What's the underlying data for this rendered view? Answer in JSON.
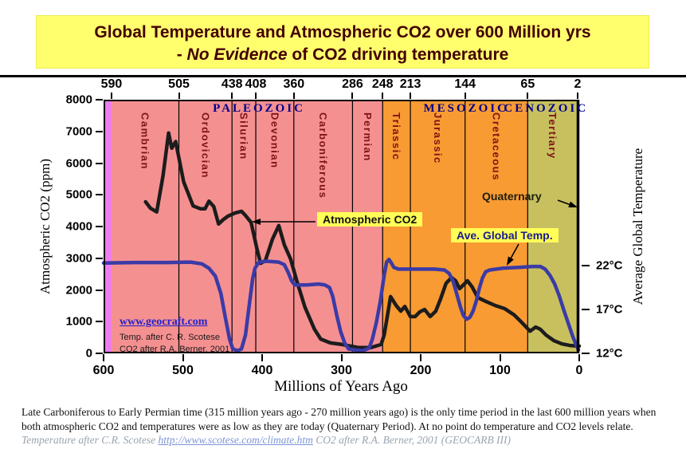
{
  "banner": {
    "line1": "Global Temperature and Atmospheric CO2 over 600 Million yrs",
    "line2_pre": "- ",
    "line2_em": "No Evidence",
    "line2_post": " of CO2 driving temperature",
    "bg_color": "#ffff6e",
    "text_color": "#440000"
  },
  "chart_data": {
    "type": "line",
    "title": "Global Temperature and Atmospheric CO2 over 600 Million yrs",
    "x_axis": {
      "label": "Millions of Years Ago",
      "range": [
        600,
        0
      ],
      "ticks": [
        600,
        500,
        400,
        300,
        200,
        100,
        0
      ]
    },
    "top_axis": {
      "ticks": [
        590,
        505,
        438,
        408,
        360,
        286,
        248,
        213,
        144,
        65,
        2
      ]
    },
    "y_left": {
      "label": "Atmospheric CO2 (ppm)",
      "range": [
        0,
        8000
      ],
      "ticks": [
        0,
        1000,
        2000,
        3000,
        4000,
        5000,
        6000,
        7000,
        8000
      ]
    },
    "y_right": {
      "label": "Average Global Temperature",
      "base_c": 12,
      "full_span_c": 28.9,
      "ticks": [
        {
          "c": 12,
          "label": "12°C"
        },
        {
          "c": 17,
          "label": "17°C"
        },
        {
          "c": 22,
          "label": "22°C"
        }
      ]
    },
    "eras": [
      {
        "name": "",
        "start": 600,
        "end": 590,
        "color": "#ef7dee"
      },
      {
        "name": "PALEOZOIC",
        "start": 590,
        "end": 248,
        "color": "#f59091",
        "label_ma": 404
      },
      {
        "name": "MESOZOIC",
        "start": 248,
        "end": 65,
        "color": "#f89b33",
        "label_ma": 143
      },
      {
        "name": "CENOZOIC",
        "start": 65,
        "end": 0,
        "color": "#c8c05f",
        "label_ma": 42
      }
    ],
    "periods": [
      {
        "name": "Cambrian",
        "start": 590,
        "end": 505
      },
      {
        "name": "Ordovician",
        "start": 505,
        "end": 438
      },
      {
        "name": "Silurian",
        "start": 438,
        "end": 408
      },
      {
        "name": "Devonian",
        "start": 408,
        "end": 360
      },
      {
        "name": "Carboniferous",
        "start": 360,
        "end": 286
      },
      {
        "name": "Permian",
        "start": 286,
        "end": 248
      },
      {
        "name": "Triassic",
        "start": 248,
        "end": 213
      },
      {
        "name": "Jurassic",
        "start": 213,
        "end": 144
      },
      {
        "name": "Cretaceous",
        "start": 144,
        "end": 65
      },
      {
        "name": "Tertiary",
        "start": 65,
        "end": 2
      }
    ],
    "series": [
      {
        "name": "Atmospheric CO2",
        "axis": "left",
        "color": "#1c1c1c",
        "points": [
          [
            547,
            4780
          ],
          [
            541,
            4580
          ],
          [
            533,
            4460
          ],
          [
            525,
            5600
          ],
          [
            518,
            6950
          ],
          [
            514,
            6470
          ],
          [
            509,
            6680
          ],
          [
            499,
            5410
          ],
          [
            487,
            4650
          ],
          [
            478,
            4560
          ],
          [
            472,
            4560
          ],
          [
            467,
            4800
          ],
          [
            461,
            4630
          ],
          [
            455,
            4080
          ],
          [
            449,
            4220
          ],
          [
            443,
            4330
          ],
          [
            434,
            4430
          ],
          [
            426,
            4480
          ],
          [
            421,
            4350
          ],
          [
            414,
            4130
          ],
          [
            407,
            3350
          ],
          [
            402,
            2840
          ],
          [
            396,
            2920
          ],
          [
            387,
            3600
          ],
          [
            379,
            4030
          ],
          [
            372,
            3420
          ],
          [
            364,
            2970
          ],
          [
            356,
            2260
          ],
          [
            346,
            1460
          ],
          [
            334,
            760
          ],
          [
            326,
            450
          ],
          [
            314,
            330
          ],
          [
            299,
            280
          ],
          [
            278,
            180
          ],
          [
            263,
            180
          ],
          [
            250,
            280
          ],
          [
            246,
            580
          ],
          [
            241,
            1330
          ],
          [
            238,
            1790
          ],
          [
            231,
            1510
          ],
          [
            225,
            1330
          ],
          [
            220,
            1480
          ],
          [
            213,
            1160
          ],
          [
            207,
            1160
          ],
          [
            201,
            1310
          ],
          [
            195,
            1380
          ],
          [
            188,
            1160
          ],
          [
            181,
            1330
          ],
          [
            175,
            1710
          ],
          [
            168,
            2210
          ],
          [
            161,
            2390
          ],
          [
            156,
            2290
          ],
          [
            151,
            2040
          ],
          [
            146,
            2160
          ],
          [
            141,
            2290
          ],
          [
            135,
            2090
          ],
          [
            128,
            1760
          ],
          [
            118,
            1640
          ],
          [
            106,
            1510
          ],
          [
            94,
            1410
          ],
          [
            82,
            1210
          ],
          [
            72,
            960
          ],
          [
            62,
            700
          ],
          [
            55,
            830
          ],
          [
            49,
            760
          ],
          [
            42,
            580
          ],
          [
            32,
            400
          ],
          [
            22,
            300
          ],
          [
            12,
            250
          ],
          [
            0,
            230
          ]
        ]
      },
      {
        "name": "Ave. Global Temp.",
        "axis": "right",
        "color": "#3b3ba6",
        "points": [
          [
            600,
            22.3
          ],
          [
            560,
            22.35
          ],
          [
            520,
            22.35
          ],
          [
            490,
            22.4
          ],
          [
            476,
            22.2
          ],
          [
            467,
            21.7
          ],
          [
            459,
            20.8
          ],
          [
            452,
            18.8
          ],
          [
            446,
            15.9
          ],
          [
            441,
            13.6
          ],
          [
            437,
            12.5
          ],
          [
            431,
            12.3
          ],
          [
            426,
            12.5
          ],
          [
            421,
            14.1
          ],
          [
            416,
            17.7
          ],
          [
            412,
            20.5
          ],
          [
            409,
            21.7
          ],
          [
            404,
            22.4
          ],
          [
            394,
            22.5
          ],
          [
            379,
            22.4
          ],
          [
            372,
            22.1
          ],
          [
            367,
            21.2
          ],
          [
            363,
            20.3
          ],
          [
            359,
            19.8
          ],
          [
            344,
            19.8
          ],
          [
            329,
            19.9
          ],
          [
            321,
            19.8
          ],
          [
            315,
            19.5
          ],
          [
            311,
            18.5
          ],
          [
            306,
            16.4
          ],
          [
            301,
            14.5
          ],
          [
            296,
            13.2
          ],
          [
            291,
            12.5
          ],
          [
            283,
            12.4
          ],
          [
            273,
            12.3
          ],
          [
            265,
            12.6
          ],
          [
            261,
            13.6
          ],
          [
            256,
            15.5
          ],
          [
            251,
            17.9
          ],
          [
            246,
            20.9
          ],
          [
            243,
            22.4
          ],
          [
            240,
            22.7
          ],
          [
            237,
            22.3
          ],
          [
            234,
            21.8
          ],
          [
            228,
            21.6
          ],
          [
            208,
            21.6
          ],
          [
            183,
            21.6
          ],
          [
            170,
            21.5
          ],
          [
            164,
            21.1
          ],
          [
            159,
            20.2
          ],
          [
            154,
            18.6
          ],
          [
            150,
            17.3
          ],
          [
            146,
            16.3
          ],
          [
            142,
            15.9
          ],
          [
            138,
            16.1
          ],
          [
            134,
            16.8
          ],
          [
            130,
            17.9
          ],
          [
            126,
            19.4
          ],
          [
            122,
            20.6
          ],
          [
            118,
            21.3
          ],
          [
            113,
            21.5
          ],
          [
            97,
            21.7
          ],
          [
            77,
            21.8
          ],
          [
            59,
            21.9
          ],
          [
            49,
            21.9
          ],
          [
            43,
            21.6
          ],
          [
            37,
            20.9
          ],
          [
            31,
            19.9
          ],
          [
            25,
            18.5
          ],
          [
            19,
            16.8
          ],
          [
            13,
            15.2
          ],
          [
            8,
            13.9
          ],
          [
            4,
            13.0
          ],
          [
            1,
            12.4
          ]
        ]
      }
    ],
    "grid": false,
    "legend_position": "inline-annotations"
  },
  "annotations": {
    "co2_label": {
      "text": "Atmospheric CO2",
      "bg": "#ffff57"
    },
    "temp_label": {
      "text": "Ave. Global Temp.",
      "bg": "#ffff57"
    },
    "quaternary_label": {
      "text": "Quaternary"
    }
  },
  "watermark": {
    "site": "www.geocraft.com",
    "credit1": "Temp. after C. R. Scotese",
    "credit2": "CO2 after R.A. Berner, 2001"
  },
  "footer": {
    "text": "Late Carboniferous to Early Permian time (315 million years ago - 270 million years ago) is the only time period in the last 600 million years when both atmospheric CO2 and temperatures were as low as they are today (Quaternary Period). At no point do temperature and CO2 levels relate. ",
    "credit_italic": "Temperature after C.R. Scotese ",
    "link": "http://www.scotese.com/climate.htm",
    "credit_italic2": " CO2 after R.A. Berner, 2001 (GEOCARB III)"
  }
}
